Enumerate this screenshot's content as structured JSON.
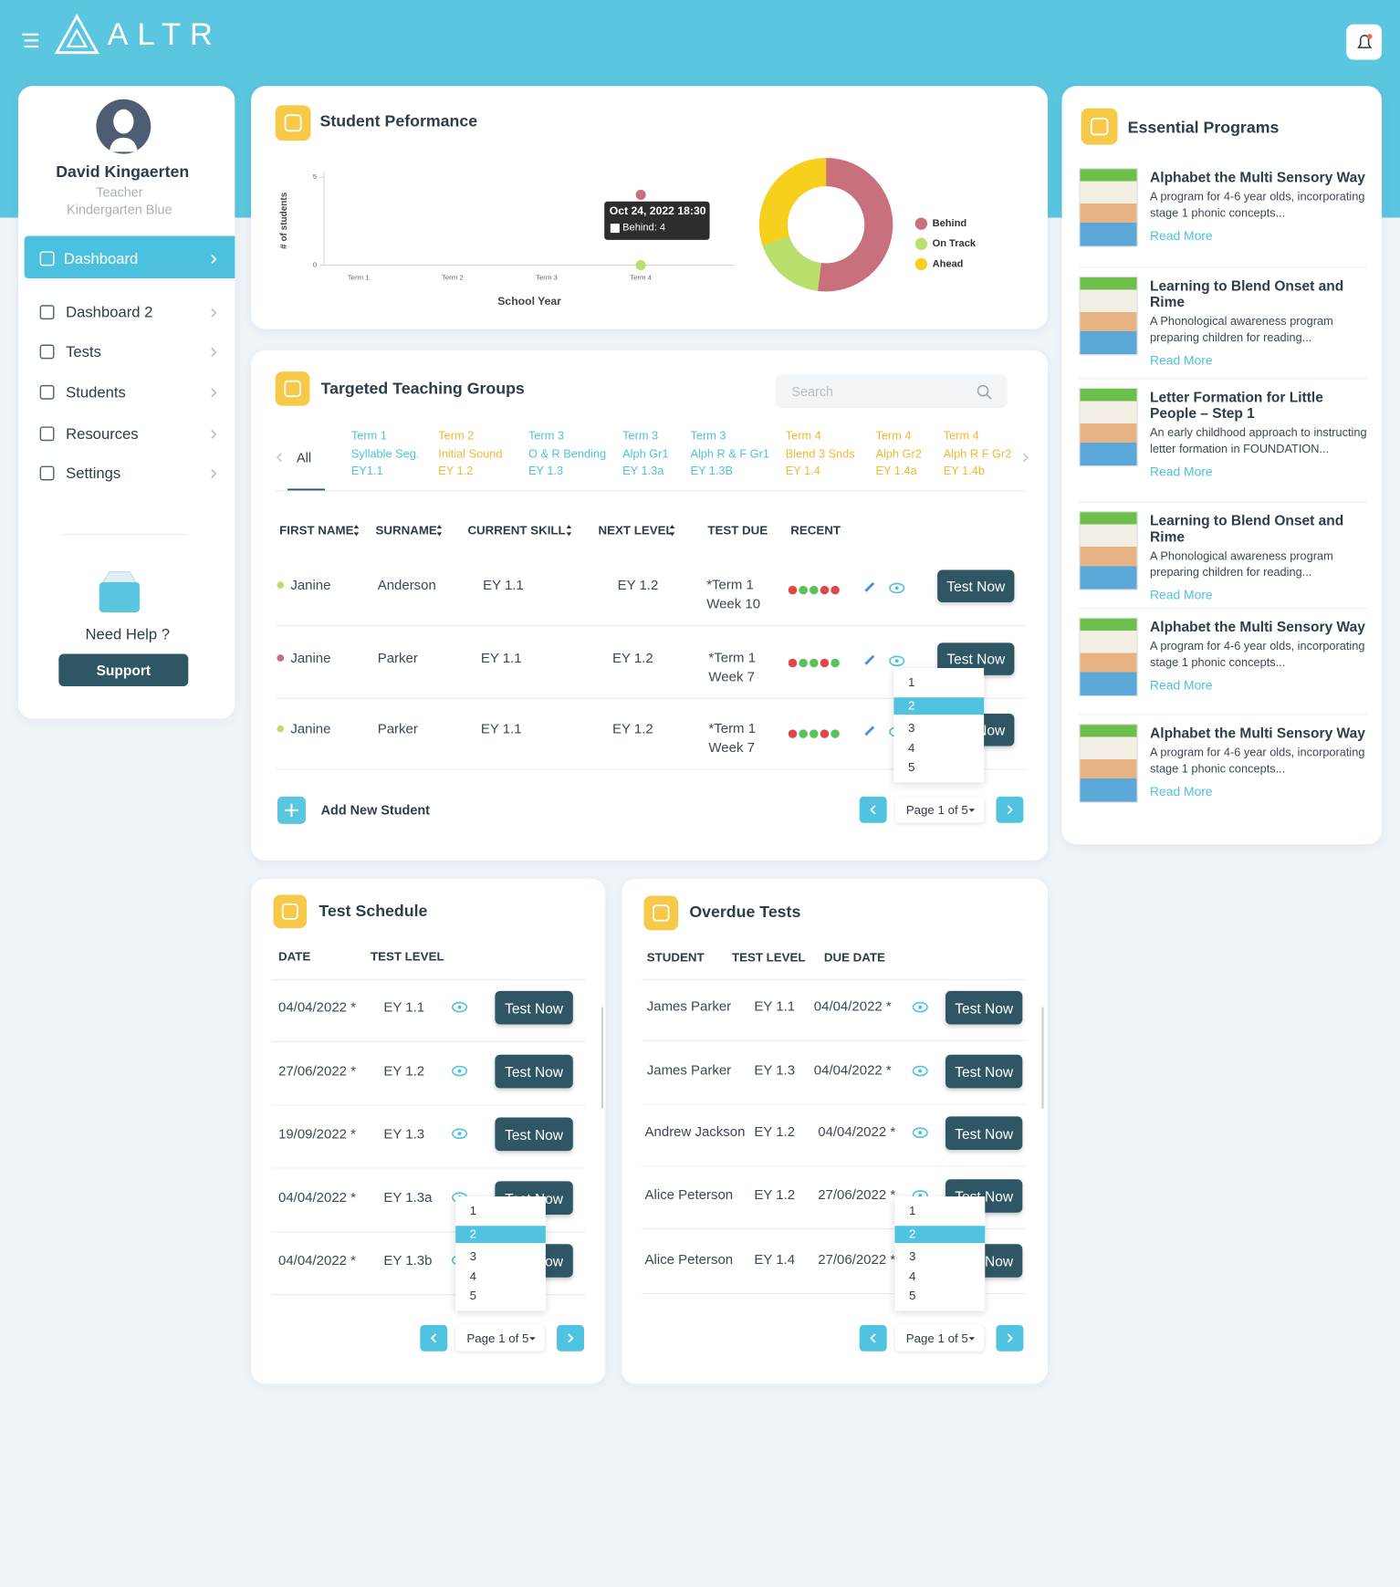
{
  "header": {
    "logo": "ALTR"
  },
  "profile": {
    "name": "David Kingaerten",
    "role": "Teacher",
    "class": "Kindergarten Blue"
  },
  "nav": [
    "Dashboard",
    "Dashboard 2",
    "Tests",
    "Students",
    "Resources",
    "Settings"
  ],
  "help": {
    "text": "Need Help ?",
    "button": "Support"
  },
  "performance": {
    "title": "Student Peformance"
  },
  "chart_data": [
    {
      "type": "line",
      "x_label": "School Year",
      "y_label": "# of students",
      "categories": [
        "Term 1",
        "Term 2",
        "Term 3",
        "Term 4"
      ],
      "series": [
        {
          "name": "Behind",
          "color": "#c8707b",
          "values": [
            null,
            null,
            null,
            4
          ]
        },
        {
          "name": "On Track",
          "color": "#b9df6c",
          "values": [
            null,
            null,
            null,
            0
          ]
        }
      ],
      "ylim": [
        0,
        5
      ],
      "yticks": [
        0,
        5
      ],
      "tooltip": {
        "title": "Oct 24, 2022 18:30",
        "text": "Behind: 4"
      }
    },
    {
      "type": "pie",
      "categories": [
        "Behind",
        "On Track",
        "Ahead"
      ],
      "values": [
        52,
        18,
        30
      ],
      "colors": [
        "#c8707b",
        "#b9df6c",
        "#f7cf1d"
      ],
      "legend": "right"
    }
  ],
  "groups": {
    "title": "Targeted Teaching Groups",
    "search": "Search",
    "all": "All",
    "tabs": [
      {
        "lines": [
          "Term 1",
          "Syllable Seg.",
          "EY1.1"
        ],
        "color": "#4fc0dd"
      },
      {
        "lines": [
          "Term 2",
          "Initial Sound",
          "EY 1.2"
        ],
        "color": "#f3b731"
      },
      {
        "lines": [
          "Term 3",
          "O & R Bending",
          "EY 1.3"
        ],
        "color": "#4fc0dd"
      },
      {
        "lines": [
          "Term 3",
          "Alph Gr1",
          "EY 1.3a"
        ],
        "color": "#4fc0dd"
      },
      {
        "lines": [
          "Term 3",
          "Alph R & F Gr1",
          "EY 1.3B"
        ],
        "color": "#4fc0dd"
      },
      {
        "lines": [
          "Term 4",
          "Blend 3 Snds",
          "EY 1.4"
        ],
        "color": "#f3b731"
      },
      {
        "lines": [
          "Term 4",
          "Alph Gr2",
          "EY 1.4a"
        ],
        "color": "#f3b731"
      },
      {
        "lines": [
          "Term 4",
          "Alph R F Gr2",
          "EY 1.4b"
        ],
        "color": "#f3b731"
      }
    ],
    "columns": [
      "FIRST NAME",
      "SURNAME",
      "CURRENT SKILL",
      "NEXT LEVEL",
      "TEST DUE",
      "RECENT"
    ],
    "rows": [
      [
        "Janine",
        "Anderson",
        "EY 1.1",
        "EY 1.2",
        "*Term 1 Week 10"
      ],
      [
        "Janine",
        "Parker",
        "EY 1.1",
        "EY 1.2",
        "*Term 1 Week 7"
      ],
      [
        "Janine",
        "Parker",
        "EY 1.1",
        "EY 1.2",
        "*Term 1 Week 7"
      ]
    ],
    "status_colors": [
      "#b9df6c",
      "#c8707b",
      "#b9df6c"
    ],
    "button": "Test Now",
    "add": "Add New Student",
    "page": "Page 1 of 5"
  },
  "dropdown": [
    "1",
    "2",
    "3",
    "4",
    "5"
  ],
  "schedule": {
    "title": "Test Schedule",
    "columns": [
      "DATE",
      "TEST LEVEL"
    ],
    "rows": [
      [
        "04/04/2022 *",
        "EY 1.1"
      ],
      [
        "27/06/2022 *",
        "EY 1.2"
      ],
      [
        "19/09/2022 *",
        "EY 1.3"
      ],
      [
        "04/04/2022 *",
        "EY 1.3a"
      ],
      [
        "04/04/2022 *",
        "EY 1.3b"
      ]
    ],
    "button": "Test Now",
    "page": "Page 1 of 5"
  },
  "overdue": {
    "title": "Overdue Tests",
    "columns": [
      "STUDENT",
      "TEST LEVEL",
      "DUE DATE"
    ],
    "rows": [
      [
        "James Parker",
        "EY 1.1",
        "04/04/2022 *"
      ],
      [
        "James Parker",
        "EY 1.3",
        "04/04/2022 *"
      ],
      [
        "Andrew Jackson",
        "EY 1.2",
        "04/04/2022 *"
      ],
      [
        "Alice Peterson",
        "EY 1.2",
        "27/06/2022 *"
      ],
      [
        "Alice Peterson",
        "EY 1.4",
        "27/06/2022 *"
      ]
    ],
    "button": "Test Now",
    "page": "Page 1 of 5"
  },
  "programs": {
    "title": "Essential Programs",
    "items": [
      {
        "title": "Alphabet the Multi Sensory Way",
        "desc": "A program for 4-6 year olds, incorporating stage 1 phonic concepts...",
        "link": "Read More"
      },
      {
        "title": "Learning to Blend Onset and Rime",
        "desc": "A Phonological awareness program preparing children for reading...",
        "link": "Read More"
      },
      {
        "title": "Letter Formation for Little People – Step 1",
        "desc": "An early childhood approach to instructing letter formation in FOUNDATION...",
        "link": "Read More"
      },
      {
        "title": "Learning to Blend Onset and Rime",
        "desc": "A Phonological awareness program preparing children for reading...",
        "link": "Read More"
      },
      {
        "title": "Alphabet the Multi Sensory Way",
        "desc": "A program for 4-6 year olds, incorporating stage 1 phonic concepts...",
        "link": "Read More"
      },
      {
        "title": "Alphabet the Multi Sensory Way",
        "desc": "A program for 4-6 year olds, incorporating stage 1 phonic concepts...",
        "link": "Read More"
      }
    ]
  }
}
